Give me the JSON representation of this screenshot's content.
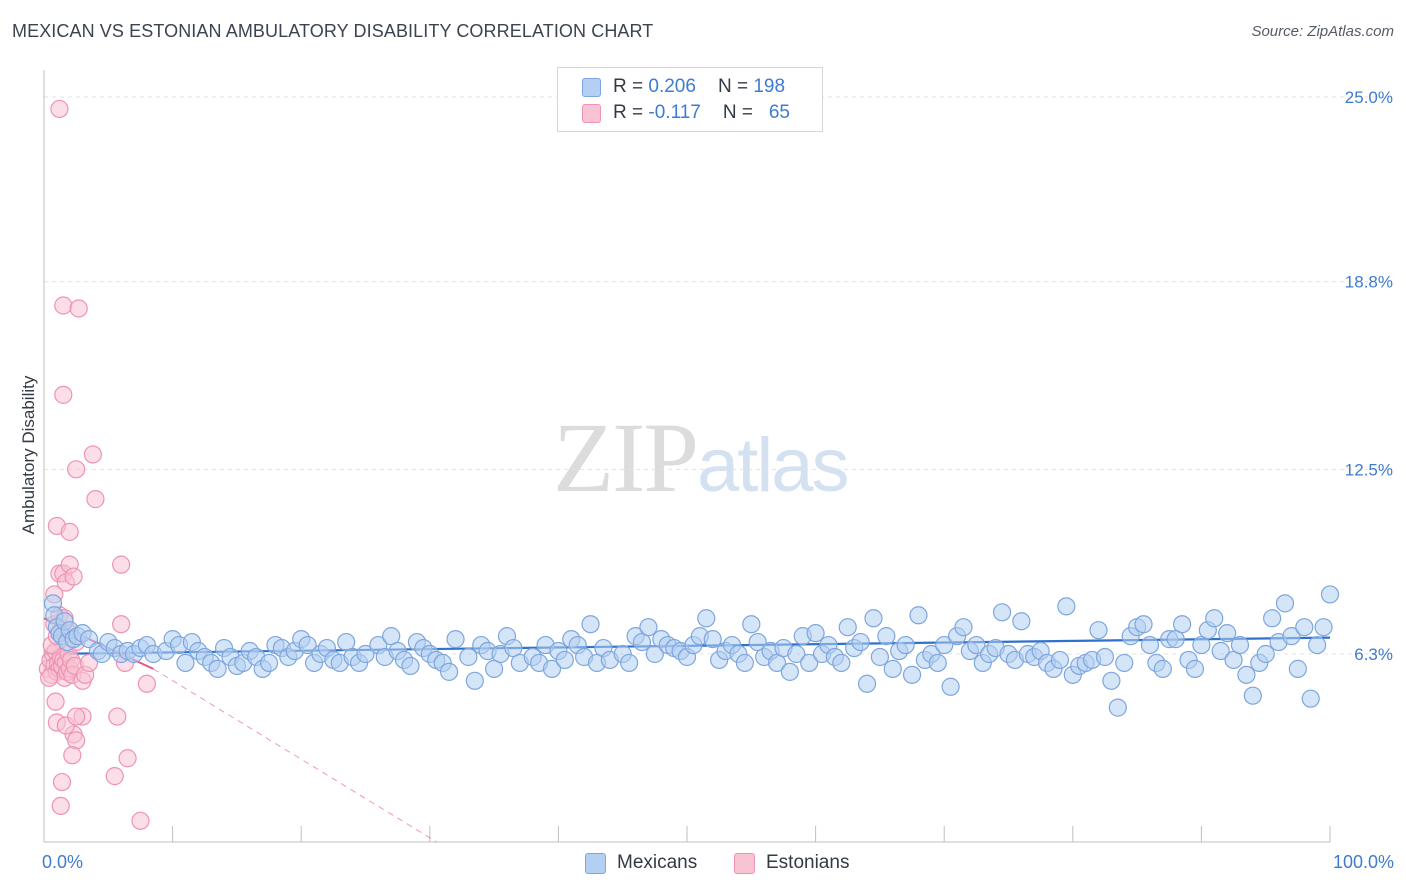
{
  "title": "MEXICAN VS ESTONIAN AMBULATORY DISABILITY CORRELATION CHART",
  "source": "Source: ZipAtlas.com",
  "watermark": {
    "zip": "ZIP",
    "atlas": "atlas"
  },
  "colors": {
    "blue_fill": "#b3cff3",
    "blue_stroke": "#7ea6dd",
    "blue_line": "#2f71cf",
    "pink_fill": "#f8c3d3",
    "pink_stroke": "#ee93b1",
    "pink_line": "#e2568a",
    "grid": "#e3e3e3",
    "axis_text": "#3f7bd1"
  },
  "legend": {
    "rows": [
      {
        "r_label": "R =",
        "r_value": "0.206",
        "n_label": "N =",
        "n_value": "198"
      },
      {
        "r_label": "R =",
        "r_value": "-0.117",
        "n_label": "N =",
        "n_value": "65"
      }
    ]
  },
  "chart_data": {
    "type": "scatter",
    "title": "MEXICAN VS ESTONIAN AMBULATORY DISABILITY CORRELATION CHART",
    "xlabel": "",
    "ylabel": "Ambulatory Disability",
    "xlim": [
      0,
      100
    ],
    "ylim": [
      0,
      26.0
    ],
    "x_tick_labels": [
      "0.0%",
      "100.0%"
    ],
    "y_ticks": [
      6.3,
      12.5,
      18.8,
      25.0
    ],
    "y_tick_labels": [
      "6.3%",
      "12.5%",
      "18.8%",
      "25.0%"
    ],
    "grid": true,
    "legend_position": "bottom-center",
    "series": [
      {
        "name": "Mexicans",
        "r": 0.206,
        "n": 198,
        "trend": {
          "x0": 0,
          "y0": 6.3,
          "x1": 100,
          "y1": 6.85
        },
        "points": [
          [
            0.7,
            8.0
          ],
          [
            0.8,
            7.6
          ],
          [
            1.0,
            7.2
          ],
          [
            1.2,
            7.0
          ],
          [
            1.4,
            6.9
          ],
          [
            1.6,
            7.4
          ],
          [
            1.8,
            6.7
          ],
          [
            2.0,
            7.1
          ],
          [
            2.3,
            6.8
          ],
          [
            2.6,
            6.9
          ],
          [
            3.0,
            7.0
          ],
          [
            3.5,
            6.8
          ],
          [
            4.2,
            6.4
          ],
          [
            4.5,
            6.3
          ],
          [
            5.0,
            6.7
          ],
          [
            5.5,
            6.5
          ],
          [
            6.0,
            6.3
          ],
          [
            6.5,
            6.4
          ],
          [
            7.0,
            6.3
          ],
          [
            7.5,
            6.5
          ],
          [
            8.0,
            6.6
          ],
          [
            8.5,
            6.3
          ],
          [
            9.5,
            6.4
          ],
          [
            10.0,
            6.8
          ],
          [
            10.5,
            6.6
          ],
          [
            11.0,
            6.0
          ],
          [
            11.5,
            6.7
          ],
          [
            12.0,
            6.4
          ],
          [
            12.5,
            6.2
          ],
          [
            13.0,
            6.0
          ],
          [
            13.5,
            5.8
          ],
          [
            14.0,
            6.5
          ],
          [
            14.5,
            6.2
          ],
          [
            15.0,
            5.9
          ],
          [
            15.5,
            6.0
          ],
          [
            16.0,
            6.4
          ],
          [
            16.5,
            6.2
          ],
          [
            17.0,
            5.8
          ],
          [
            17.5,
            6.0
          ],
          [
            18.0,
            6.6
          ],
          [
            18.5,
            6.5
          ],
          [
            19.0,
            6.2
          ],
          [
            19.5,
            6.4
          ],
          [
            20.0,
            6.8
          ],
          [
            20.5,
            6.6
          ],
          [
            21.0,
            6.0
          ],
          [
            21.5,
            6.3
          ],
          [
            22.0,
            6.5
          ],
          [
            22.5,
            6.1
          ],
          [
            23.0,
            6.0
          ],
          [
            23.5,
            6.7
          ],
          [
            24.0,
            6.2
          ],
          [
            24.5,
            6.0
          ],
          [
            25.0,
            6.3
          ],
          [
            26.0,
            6.6
          ],
          [
            26.5,
            6.2
          ],
          [
            27.0,
            6.9
          ],
          [
            27.5,
            6.4
          ],
          [
            28.0,
            6.1
          ],
          [
            28.5,
            5.9
          ],
          [
            29.0,
            6.7
          ],
          [
            29.5,
            6.5
          ],
          [
            30.0,
            6.3
          ],
          [
            30.5,
            6.1
          ],
          [
            31.0,
            6.0
          ],
          [
            31.5,
            5.7
          ],
          [
            32.0,
            6.8
          ],
          [
            33.0,
            6.2
          ],
          [
            33.5,
            5.4
          ],
          [
            34.0,
            6.6
          ],
          [
            34.5,
            6.4
          ],
          [
            35.0,
            5.8
          ],
          [
            35.5,
            6.3
          ],
          [
            36.0,
            6.9
          ],
          [
            36.5,
            6.5
          ],
          [
            37.0,
            6.0
          ],
          [
            38.0,
            6.2
          ],
          [
            38.5,
            6.0
          ],
          [
            39.0,
            6.6
          ],
          [
            39.5,
            5.8
          ],
          [
            40.0,
            6.4
          ],
          [
            40.5,
            6.1
          ],
          [
            41.0,
            6.8
          ],
          [
            41.5,
            6.6
          ],
          [
            42.0,
            6.2
          ],
          [
            42.5,
            7.3
          ],
          [
            43.0,
            6.0
          ],
          [
            43.5,
            6.5
          ],
          [
            44.0,
            6.1
          ],
          [
            45.0,
            6.3
          ],
          [
            45.5,
            6.0
          ],
          [
            46.0,
            6.9
          ],
          [
            46.5,
            6.7
          ],
          [
            47.0,
            7.2
          ],
          [
            47.5,
            6.3
          ],
          [
            48.0,
            6.8
          ],
          [
            48.5,
            6.6
          ],
          [
            49.0,
            6.5
          ],
          [
            49.5,
            6.4
          ],
          [
            50.0,
            6.2
          ],
          [
            50.5,
            6.6
          ],
          [
            51.0,
            6.9
          ],
          [
            51.5,
            7.5
          ],
          [
            52.0,
            6.8
          ],
          [
            52.5,
            6.1
          ],
          [
            53.0,
            6.4
          ],
          [
            53.5,
            6.6
          ],
          [
            54.0,
            6.3
          ],
          [
            54.5,
            6.0
          ],
          [
            55.0,
            7.3
          ],
          [
            55.5,
            6.7
          ],
          [
            56.0,
            6.2
          ],
          [
            56.5,
            6.4
          ],
          [
            57.0,
            6.0
          ],
          [
            57.5,
            6.5
          ],
          [
            58.0,
            5.7
          ],
          [
            58.5,
            6.3
          ],
          [
            59.0,
            6.9
          ],
          [
            59.5,
            6.0
          ],
          [
            60.0,
            7.0
          ],
          [
            60.5,
            6.3
          ],
          [
            61.0,
            6.6
          ],
          [
            61.5,
            6.2
          ],
          [
            62.0,
            6.0
          ],
          [
            62.5,
            7.2
          ],
          [
            63.0,
            6.5
          ],
          [
            63.5,
            6.7
          ],
          [
            64.0,
            5.3
          ],
          [
            64.5,
            7.5
          ],
          [
            65.0,
            6.2
          ],
          [
            65.5,
            6.9
          ],
          [
            66.0,
            5.8
          ],
          [
            66.5,
            6.4
          ],
          [
            67.0,
            6.6
          ],
          [
            67.5,
            5.6
          ],
          [
            68.0,
            7.6
          ],
          [
            68.5,
            6.1
          ],
          [
            69.0,
            6.3
          ],
          [
            69.5,
            6.0
          ],
          [
            70.0,
            6.6
          ],
          [
            70.5,
            5.2
          ],
          [
            71.0,
            6.9
          ],
          [
            71.5,
            7.2
          ],
          [
            72.0,
            6.4
          ],
          [
            72.5,
            6.6
          ],
          [
            73.0,
            6.0
          ],
          [
            73.5,
            6.3
          ],
          [
            74.0,
            6.5
          ],
          [
            74.5,
            7.7
          ],
          [
            75.0,
            6.3
          ],
          [
            75.5,
            6.1
          ],
          [
            76.0,
            7.4
          ],
          [
            76.5,
            6.3
          ],
          [
            77.0,
            6.2
          ],
          [
            77.5,
            6.4
          ],
          [
            78.0,
            6.0
          ],
          [
            78.5,
            5.8
          ],
          [
            79.0,
            6.1
          ],
          [
            79.5,
            7.9
          ],
          [
            80.0,
            5.6
          ],
          [
            80.5,
            5.9
          ],
          [
            81.0,
            6.0
          ],
          [
            81.5,
            6.1
          ],
          [
            82.0,
            7.1
          ],
          [
            82.5,
            6.2
          ],
          [
            83.0,
            5.4
          ],
          [
            83.5,
            4.5
          ],
          [
            84.0,
            6.0
          ],
          [
            84.5,
            6.9
          ],
          [
            85.0,
            7.2
          ],
          [
            85.5,
            7.3
          ],
          [
            86.0,
            6.6
          ],
          [
            86.5,
            6.0
          ],
          [
            87.0,
            5.8
          ],
          [
            87.5,
            6.8
          ],
          [
            88.0,
            6.8
          ],
          [
            88.5,
            7.3
          ],
          [
            89.0,
            6.1
          ],
          [
            89.5,
            5.8
          ],
          [
            90.0,
            6.6
          ],
          [
            90.5,
            7.1
          ],
          [
            91.0,
            7.5
          ],
          [
            91.5,
            6.4
          ],
          [
            92.0,
            7.0
          ],
          [
            92.5,
            6.1
          ],
          [
            93.0,
            6.6
          ],
          [
            93.5,
            5.6
          ],
          [
            94.0,
            4.9
          ],
          [
            94.5,
            6.0
          ],
          [
            95.0,
            6.3
          ],
          [
            95.5,
            7.5
          ],
          [
            96.0,
            6.7
          ],
          [
            96.5,
            8.0
          ],
          [
            97.0,
            6.9
          ],
          [
            97.5,
            5.8
          ],
          [
            98.0,
            7.2
          ],
          [
            98.5,
            4.8
          ],
          [
            99.0,
            6.6
          ],
          [
            99.5,
            7.2
          ],
          [
            100.0,
            8.3
          ]
        ]
      },
      {
        "name": "Estonians",
        "r": -0.117,
        "n": 65,
        "trend": {
          "x0": 0,
          "y0": 7.5,
          "x1": 8.5,
          "y1": 5.8,
          "dashed_to_x": 30.5,
          "dashed_to_y": 0.0
        },
        "points": [
          [
            0.3,
            5.8
          ],
          [
            0.5,
            6.1
          ],
          [
            0.6,
            5.6
          ],
          [
            0.7,
            6.3
          ],
          [
            0.8,
            5.9
          ],
          [
            0.9,
            6.4
          ],
          [
            1.0,
            5.7
          ],
          [
            1.1,
            6.0
          ],
          [
            1.2,
            5.8
          ],
          [
            1.3,
            6.2
          ],
          [
            1.4,
            5.9
          ],
          [
            1.5,
            6.1
          ],
          [
            1.6,
            5.5
          ],
          [
            1.7,
            6.0
          ],
          [
            1.8,
            5.7
          ],
          [
            1.9,
            6.3
          ],
          [
            2.0,
            5.8
          ],
          [
            2.1,
            6.1
          ],
          [
            2.2,
            5.6
          ],
          [
            2.4,
            5.9
          ],
          [
            0.4,
            5.5
          ],
          [
            0.6,
            6.6
          ],
          [
            0.8,
            7.3
          ],
          [
            1.0,
            6.9
          ],
          [
            1.2,
            7.6
          ],
          [
            1.4,
            7.1
          ],
          [
            1.6,
            7.5
          ],
          [
            2.0,
            7.0
          ],
          [
            2.5,
            6.7
          ],
          [
            3.0,
            5.4
          ],
          [
            3.2,
            5.6
          ],
          [
            3.5,
            6.0
          ],
          [
            0.8,
            8.3
          ],
          [
            1.2,
            9.0
          ],
          [
            1.5,
            9.0
          ],
          [
            1.7,
            8.7
          ],
          [
            2.0,
            9.3
          ],
          [
            2.3,
            8.9
          ],
          [
            1.0,
            10.6
          ],
          [
            2.0,
            10.4
          ],
          [
            2.5,
            12.5
          ],
          [
            4.0,
            11.5
          ],
          [
            3.8,
            13.0
          ],
          [
            1.5,
            15.0
          ],
          [
            1.5,
            18.0
          ],
          [
            2.7,
            17.9
          ],
          [
            1.2,
            24.6
          ],
          [
            0.9,
            4.7
          ],
          [
            1.0,
            4.0
          ],
          [
            2.3,
            3.6
          ],
          [
            2.5,
            3.4
          ],
          [
            2.2,
            2.9
          ],
          [
            3.0,
            4.2
          ],
          [
            1.4,
            2.0
          ],
          [
            1.3,
            1.2
          ],
          [
            5.5,
            2.2
          ],
          [
            6.5,
            2.8
          ],
          [
            7.5,
            0.7
          ],
          [
            5.7,
            4.2
          ],
          [
            6.0,
            9.3
          ],
          [
            6.0,
            7.3
          ],
          [
            6.3,
            6.0
          ],
          [
            8.0,
            5.3
          ],
          [
            1.7,
            3.9
          ],
          [
            2.5,
            4.2
          ]
        ]
      }
    ]
  }
}
